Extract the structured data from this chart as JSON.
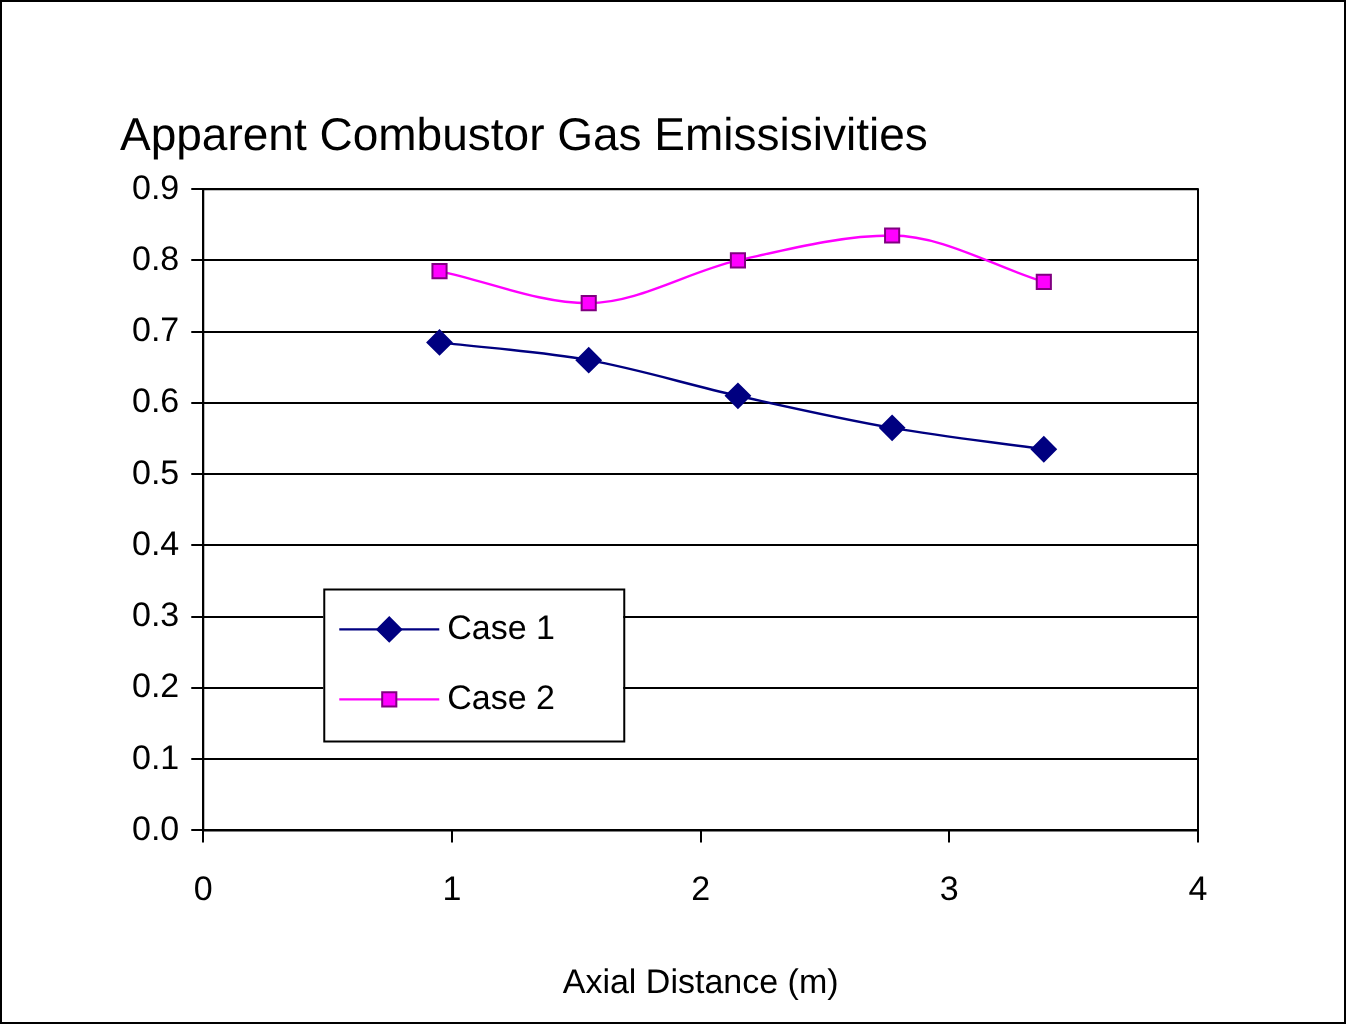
{
  "chart_data": {
    "type": "line",
    "title": "Apparent Combustor Gas Emissisivities",
    "xlabel": "Axial Distance (m)",
    "xlim": [
      0,
      4
    ],
    "xticks": [
      0,
      1,
      2,
      3,
      4
    ],
    "ylim": [
      0,
      0.9
    ],
    "yticks": [
      {
        "value": 0,
        "label": "0.0"
      },
      0.1,
      0.2,
      0.3,
      0.4,
      0.5,
      0.6,
      0.7,
      0.8,
      0.9
    ],
    "grid": "y",
    "legend": "bottom left",
    "line_style": "solid",
    "series": [
      {
        "name": "Case 1",
        "color": "#000080",
        "marker": "diamond",
        "x": [
          0.95,
          1.55,
          2.15,
          2.77,
          3.38
        ],
        "values": [
          0.685,
          0.66,
          0.61,
          0.565,
          0.535
        ]
      },
      {
        "name": "Case 2",
        "color": "#ff00ff",
        "marker": "square",
        "x": [
          0.95,
          1.55,
          2.15,
          2.77,
          3.38
        ],
        "values": [
          0.785,
          0.74,
          0.8,
          0.835,
          0.77
        ]
      }
    ]
  }
}
